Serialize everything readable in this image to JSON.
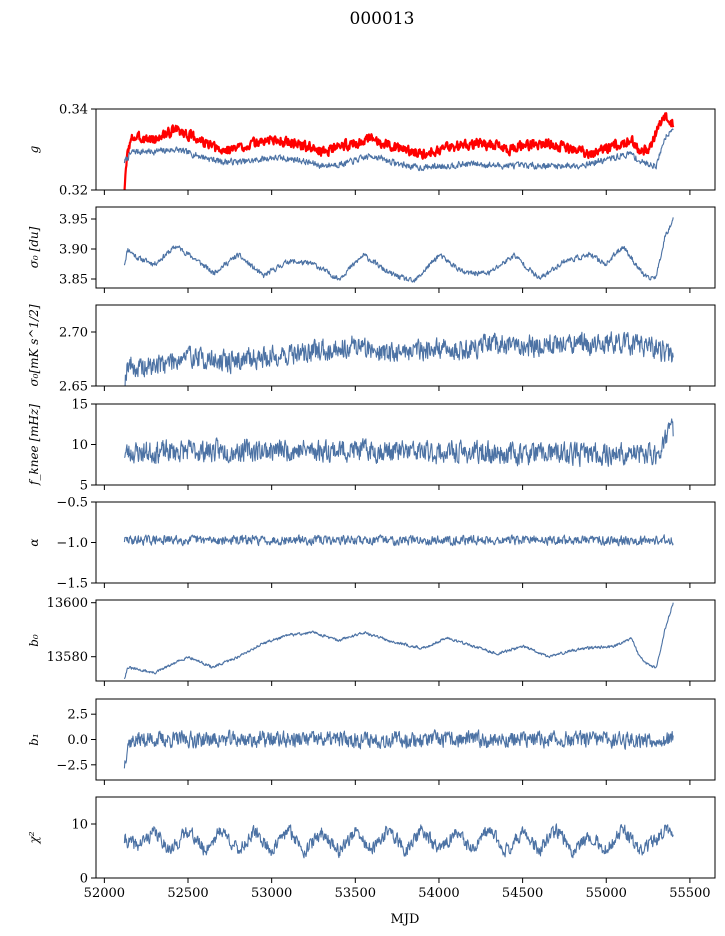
{
  "page": {
    "title": "000013"
  },
  "chart_data": [
    {
      "type": "line",
      "ylabel": "g",
      "ylim": [
        0.32,
        0.34
      ],
      "yticks": [
        0.32,
        0.34
      ],
      "ytick_labels": [
        "0.32",
        "0.34"
      ],
      "series": [
        {
          "color": "#ff0000",
          "base": [
            [
              52120,
              0.32
            ],
            [
              52140,
              0.33
            ],
            [
              52170,
              0.333
            ],
            [
              52300,
              0.3325
            ],
            [
              52430,
              0.335
            ],
            [
              52560,
              0.3325
            ],
            [
              52700,
              0.3295
            ],
            [
              52850,
              0.331
            ],
            [
              53000,
              0.3325
            ],
            [
              53150,
              0.3315
            ],
            [
              53300,
              0.3295
            ],
            [
              53430,
              0.331
            ],
            [
              53600,
              0.3325
            ],
            [
              53750,
              0.3305
            ],
            [
              53880,
              0.329
            ],
            [
              54050,
              0.3305
            ],
            [
              54200,
              0.3315
            ],
            [
              54350,
              0.331
            ],
            [
              54420,
              0.33
            ],
            [
              54500,
              0.331
            ],
            [
              54650,
              0.3315
            ],
            [
              54800,
              0.33
            ],
            [
              54900,
              0.329
            ],
            [
              55050,
              0.331
            ],
            [
              55150,
              0.3325
            ],
            [
              55200,
              0.3295
            ],
            [
              55260,
              0.33
            ],
            [
              55320,
              0.3365
            ],
            [
              55350,
              0.338
            ],
            [
              55380,
              0.337
            ],
            [
              55400,
              0.336
            ]
          ],
          "noise": 0.0011,
          "seed": 3
        },
        {
          "color": "#4c72a4",
          "base": [
            [
              52120,
              0.327
            ],
            [
              52170,
              0.3295
            ],
            [
              52300,
              0.3295
            ],
            [
              52430,
              0.33
            ],
            [
              52560,
              0.3285
            ],
            [
              52700,
              0.327
            ],
            [
              52850,
              0.327
            ],
            [
              53000,
              0.328
            ],
            [
              53150,
              0.3275
            ],
            [
              53300,
              0.326
            ],
            [
              53430,
              0.3265
            ],
            [
              53600,
              0.3285
            ],
            [
              53750,
              0.3265
            ],
            [
              53880,
              0.3255
            ],
            [
              54050,
              0.326
            ],
            [
              54200,
              0.3265
            ],
            [
              54350,
              0.326
            ],
            [
              54500,
              0.326
            ],
            [
              54650,
              0.326
            ],
            [
              54800,
              0.326
            ],
            [
              54900,
              0.3265
            ],
            [
              55050,
              0.328
            ],
            [
              55150,
              0.329
            ],
            [
              55200,
              0.327
            ],
            [
              55300,
              0.326
            ],
            [
              55350,
              0.333
            ],
            [
              55400,
              0.3355
            ]
          ],
          "noise": 0.0007,
          "seed": 7
        }
      ]
    },
    {
      "type": "line",
      "ylabel": "σ₀ [du]",
      "ylim": [
        3.835,
        3.97
      ],
      "yticks": [
        3.85,
        3.9,
        3.95
      ],
      "ytick_labels": [
        "3.85",
        "3.90",
        "3.95"
      ],
      "series": [
        {
          "color": "#4c72a4",
          "base": [
            [
              52120,
              3.875
            ],
            [
              52140,
              3.9
            ],
            [
              52200,
              3.885
            ],
            [
              52300,
              3.875
            ],
            [
              52430,
              3.905
            ],
            [
              52560,
              3.88
            ],
            [
              52650,
              3.86
            ],
            [
              52800,
              3.89
            ],
            [
              52950,
              3.855
            ],
            [
              53100,
              3.88
            ],
            [
              53250,
              3.875
            ],
            [
              53400,
              3.85
            ],
            [
              53550,
              3.89
            ],
            [
              53700,
              3.86
            ],
            [
              53850,
              3.845
            ],
            [
              54000,
              3.89
            ],
            [
              54150,
              3.86
            ],
            [
              54300,
              3.86
            ],
            [
              54450,
              3.89
            ],
            [
              54600,
              3.85
            ],
            [
              54750,
              3.88
            ],
            [
              54900,
              3.89
            ],
            [
              55000,
              3.875
            ],
            [
              55100,
              3.905
            ],
            [
              55200,
              3.865
            ],
            [
              55250,
              3.85
            ],
            [
              55300,
              3.855
            ],
            [
              55350,
              3.92
            ],
            [
              55400,
              3.95
            ]
          ],
          "noise": 0.004,
          "seed": 11
        }
      ]
    },
    {
      "type": "line",
      "ylabel": "σ₀[mK s^1/2]",
      "ylim": [
        2.65,
        2.725
      ],
      "yticks": [
        2.65,
        2.7
      ],
      "ytick_labels": [
        "2.65",
        "2.70"
      ],
      "series": [
        {
          "color": "#4c72a4",
          "base": [
            [
              52120,
              2.652
            ],
            [
              52140,
              2.672
            ],
            [
              52200,
              2.665
            ],
            [
              52300,
              2.669
            ],
            [
              52500,
              2.678
            ],
            [
              52700,
              2.672
            ],
            [
              52900,
              2.676
            ],
            [
              53100,
              2.679
            ],
            [
              53300,
              2.683
            ],
            [
              53500,
              2.688
            ],
            [
              53700,
              2.68
            ],
            [
              53900,
              2.685
            ],
            [
              54100,
              2.683
            ],
            [
              54300,
              2.688
            ],
            [
              54500,
              2.687
            ],
            [
              54700,
              2.689
            ],
            [
              54900,
              2.688
            ],
            [
              55100,
              2.69
            ],
            [
              55300,
              2.684
            ],
            [
              55400,
              2.678
            ]
          ],
          "noise": 0.009,
          "seed": 19
        }
      ]
    },
    {
      "type": "line",
      "ylabel": "f_knee [mHz]",
      "ylim": [
        5,
        15
      ],
      "yticks": [
        5,
        10,
        15
      ],
      "ytick_labels": [
        "5",
        "10",
        "15"
      ],
      "series": [
        {
          "color": "#4c72a4",
          "base": [
            [
              52120,
              9.0
            ],
            [
              52500,
              9.2
            ],
            [
              53000,
              9.3
            ],
            [
              53500,
              9.3
            ],
            [
              54000,
              9.0
            ],
            [
              54500,
              8.9
            ],
            [
              55000,
              8.8
            ],
            [
              55300,
              8.8
            ],
            [
              55350,
              10.5
            ],
            [
              55380,
              12.5
            ],
            [
              55400,
              11.5
            ]
          ],
          "noise": 1.2,
          "seed": 23
        }
      ]
    },
    {
      "type": "line",
      "ylabel": "α",
      "ylim": [
        -1.5,
        -0.5
      ],
      "yticks": [
        -1.5,
        -1.0,
        -0.5
      ],
      "ytick_labels": [
        "−1.5",
        "−1.0",
        "−0.5"
      ],
      "series": [
        {
          "color": "#4c72a4",
          "base": [
            [
              52120,
              -0.97
            ],
            [
              55400,
              -0.97
            ]
          ],
          "noise": 0.05,
          "seed": 29
        }
      ]
    },
    {
      "type": "line",
      "ylabel": "b₀",
      "ylim": [
        13571,
        13601
      ],
      "yticks": [
        13580,
        13600
      ],
      "ytick_labels": [
        "13580",
        "13600"
      ],
      "series": [
        {
          "color": "#4c72a4",
          "base": [
            [
              52120,
              13572
            ],
            [
              52140,
              13576
            ],
            [
              52300,
              13574
            ],
            [
              52500,
              13580
            ],
            [
              52650,
              13576
            ],
            [
              52800,
              13580
            ],
            [
              52950,
              13585
            ],
            [
              53100,
              13588
            ],
            [
              53250,
              13589
            ],
            [
              53400,
              13586
            ],
            [
              53550,
              13589
            ],
            [
              53700,
              13586
            ],
            [
              53900,
              13583
            ],
            [
              54050,
              13587
            ],
            [
              54200,
              13584
            ],
            [
              54350,
              13581
            ],
            [
              54500,
              13584
            ],
            [
              54650,
              13580
            ],
            [
              54850,
              13583
            ],
            [
              55050,
              13584
            ],
            [
              55150,
              13587
            ],
            [
              55200,
              13580
            ],
            [
              55250,
              13577
            ],
            [
              55300,
              13576
            ],
            [
              55350,
              13590
            ],
            [
              55400,
              13600
            ]
          ],
          "noise": 0.45,
          "seed": 31
        }
      ]
    },
    {
      "type": "line",
      "ylabel": "b₁",
      "ylim": [
        -4,
        4
      ],
      "yticks": [
        -2.5,
        0.0,
        2.5
      ],
      "ytick_labels": [
        "−2.5",
        "0.0",
        "2.5"
      ],
      "series": [
        {
          "color": "#4c72a4",
          "base": [
            [
              52120,
              -2.5
            ],
            [
              52140,
              -0.3
            ],
            [
              52200,
              0.0
            ],
            [
              55400,
              0.0
            ]
          ],
          "noise": 0.7,
          "seed": 37
        }
      ]
    },
    {
      "type": "line",
      "ylabel": "χ²",
      "ylim": [
        0,
        15
      ],
      "yticks": [
        0,
        10
      ],
      "ytick_labels": [
        "0",
        "10"
      ],
      "series": [
        {
          "color": "#4c72a4",
          "base": [
            [
              52120,
              7.0
            ],
            [
              52200,
              6.0
            ],
            [
              52300,
              8.5
            ],
            [
              52400,
              5.0
            ],
            [
              52500,
              9.0
            ],
            [
              52600,
              5.0
            ],
            [
              52700,
              9.0
            ],
            [
              52800,
              5.0
            ],
            [
              52900,
              8.5
            ],
            [
              53000,
              5.0
            ],
            [
              53100,
              9.0
            ],
            [
              53200,
              5.0
            ],
            [
              53300,
              8.5
            ],
            [
              53400,
              5.0
            ],
            [
              53500,
              8.5
            ],
            [
              53600,
              5.0
            ],
            [
              53700,
              9.0
            ],
            [
              53800,
              5.0
            ],
            [
              53900,
              9.0
            ],
            [
              54000,
              5.0
            ],
            [
              54100,
              8.5
            ],
            [
              54200,
              5.0
            ],
            [
              54300,
              9.0
            ],
            [
              54400,
              5.0
            ],
            [
              54500,
              8.5
            ],
            [
              54600,
              5.0
            ],
            [
              54700,
              9.0
            ],
            [
              54800,
              5.0
            ],
            [
              54900,
              8.0
            ],
            [
              55000,
              5.0
            ],
            [
              55100,
              9.0
            ],
            [
              55200,
              5.0
            ],
            [
              55300,
              7.0
            ],
            [
              55350,
              9.0
            ],
            [
              55400,
              8.0
            ]
          ],
          "noise": 1.1,
          "seed": 41
        }
      ]
    }
  ],
  "x_axis": {
    "label": "MJD",
    "xlim": [
      51950,
      55650
    ],
    "ticks": [
      52000,
      52500,
      53000,
      53500,
      54000,
      54500,
      55000,
      55500
    ],
    "tick_labels": [
      "52000",
      "52500",
      "53000",
      "53500",
      "54000",
      "54500",
      "55000",
      "55500"
    ]
  }
}
